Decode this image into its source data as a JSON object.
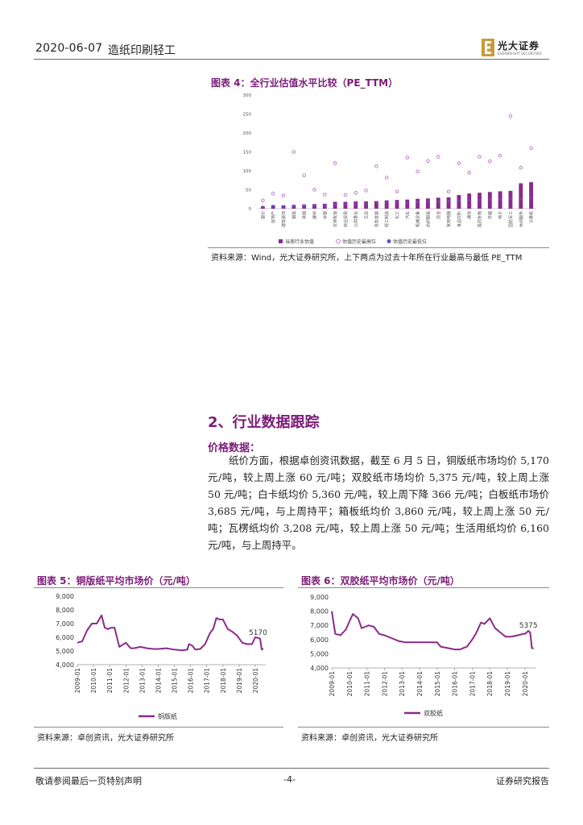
{
  "header": {
    "date": "2020-06-07",
    "sector": "造纸印刷轻工",
    "logo_cn": "光大证券",
    "logo_en": "EVERBRIGHT SECURITIES",
    "colors": {
      "logo": "#c89a3c",
      "accent": "#7b1c77"
    }
  },
  "figure4": {
    "title": "图表 4：全行业估值水平比较（PE_TTM）",
    "source": "资料来源：Wind，光大证券研究所，上下两点为过去十年所在行业最高与最低 PE_TTM"
  },
  "section": {
    "title": "2、行业数据跟踪",
    "subtitle": "价格数据：",
    "paragraph": "纸价方面，根据卓创资讯数据，截至 6 月 5 日，铜版纸市场均价 5,170 元/吨，较上周上涨 60 元/吨；双胶纸市场均价 5,375 元/吨，较上周上涨 50 元/吨；白卡纸均价 5,360 元/吨，较上周下降 366 元/吨；白板纸市场价 3,685 元/吨，与上周持平；箱板纸均价 3,860 元/吨，较上周上涨 50 元/吨；瓦楞纸均价 3,208 元/吨，较上周上涨 50 元/吨；生活用纸均价 6,160 元/吨，与上周持平。"
  },
  "figure5": {
    "title": "图表 5：铜版纸平均市场价（元/吨）",
    "source": "资料来源：卓创资讯，光大证券研究所"
  },
  "figure6": {
    "title": "图表 6：双胶纸平均市场价（元/吨）",
    "source": "资料来源：卓创资讯，光大证券研究所"
  },
  "footer": {
    "left": "敬请参阅最后一页特别声明",
    "page": "-4-",
    "right": "证券研究报告"
  },
  "chart_data": [
    {
      "type": "bar",
      "ylim": [
        0,
        300
      ],
      "yticks": [
        0,
        50,
        100,
        150,
        200,
        250,
        300
      ],
      "categories": [
        "银行",
        "房地产",
        "建筑装饰",
        "钢铁",
        "采掘",
        "建材",
        "非银",
        "农林牧渔",
        "商业贸易",
        "公用事业",
        "交运",
        "有色金属",
        "轻工制造",
        "化工",
        "汽车",
        "机械设备",
        "纺织服装",
        "综合",
        "家用电器",
        "食品饮料",
        "通信",
        "医药生物",
        "传媒",
        "电子",
        "国防军工",
        "休闲服务",
        "计算机"
      ],
      "series": [
        {
          "name": "当周行业估值",
          "type": "bar",
          "color": "#8b2a8a",
          "values": [
            6,
            9,
            9,
            10,
            11,
            12,
            13,
            18,
            18,
            19,
            19,
            20,
            22,
            23,
            24,
            26,
            27,
            29,
            30,
            36,
            40,
            42,
            44,
            46,
            47,
            67,
            70
          ]
        },
        {
          "name": "估值历史最高位",
          "type": "scatter",
          "color": "#b05fc0",
          "values": [
            22,
            40,
            35,
            150,
            88,
            50,
            37,
            120,
            36,
            42,
            48,
            112,
            82,
            45,
            135,
            98,
            126,
            137,
            45,
            120,
            95,
            137,
            125,
            140,
            244,
            108,
            160
          ]
        },
        {
          "name": "估值历史最低位",
          "type": "scatter",
          "color": "#6a4cc8",
          "values": [
            5,
            7,
            6,
            6,
            7,
            8,
            9,
            11,
            11,
            12,
            13,
            16,
            17,
            15,
            16,
            17,
            18,
            19,
            20,
            21,
            22,
            23,
            24,
            25,
            26,
            26,
            28
          ]
        }
      ]
    },
    {
      "type": "line",
      "ylim": [
        4000,
        9000
      ],
      "yticks": [
        "4,000",
        "5,000",
        "6,000",
        "7,000",
        "8,000",
        "9,000"
      ],
      "xticks": [
        "2009-01",
        "2010-01",
        "2011-01",
        "2012-01",
        "2013-01",
        "2014-01",
        "2015-01",
        "2016-01",
        "2017-01",
        "2018-01",
        "2019-01",
        "2020-01"
      ],
      "end_label": "5170",
      "series": [
        {
          "name": "铜版纸",
          "color": "#8b2a8a",
          "x": [
            2009.0,
            2009.3,
            2009.6,
            2009.9,
            2010.2,
            2010.5,
            2010.7,
            2010.9,
            2011.1,
            2011.3,
            2011.6,
            2012.0,
            2012.3,
            2012.5,
            2012.9,
            2013.3,
            2013.7,
            2014.0,
            2014.5,
            2015.0,
            2015.5,
            2015.8,
            2015.9,
            2016.1,
            2016.3,
            2016.6,
            2016.9,
            2017.2,
            2017.4,
            2017.6,
            2017.8,
            2018.0,
            2018.3,
            2018.6,
            2018.9,
            2019.2,
            2019.5,
            2019.8,
            2020.0,
            2020.2,
            2020.3,
            2020.4,
            2020.5
          ],
          "y": [
            5600,
            5700,
            6500,
            7000,
            7000,
            7600,
            6700,
            6600,
            6700,
            6700,
            5300,
            5600,
            5200,
            5200,
            5300,
            5200,
            5150,
            5150,
            5200,
            5100,
            5050,
            5100,
            5500,
            5400,
            5100,
            5150,
            5500,
            6300,
            6600,
            7400,
            7300,
            7300,
            6600,
            6400,
            6100,
            5600,
            5500,
            5500,
            6000,
            5950,
            5900,
            5100,
            5170
          ]
        }
      ]
    },
    {
      "type": "line",
      "ylim": [
        4000,
        9000
      ],
      "yticks": [
        "4,000",
        "5,000",
        "6,000",
        "7,000",
        "8,000",
        "9,000"
      ],
      "xticks": [
        "2009-01",
        "2010-01",
        "2011-01",
        "2012-01",
        "2013-01",
        "2014-01",
        "2015-01",
        "2016-01",
        "2017-01",
        "2018-01",
        "2019-01",
        "2020-01"
      ],
      "end_label": "5375",
      "series": [
        {
          "name": "双胶纸",
          "color": "#8b2a8a",
          "x": [
            2009.0,
            2009.2,
            2009.5,
            2009.8,
            2010.2,
            2010.5,
            2010.7,
            2010.9,
            2011.1,
            2011.4,
            2011.7,
            2012.0,
            2012.4,
            2012.8,
            2013.2,
            2013.6,
            2014.0,
            2014.5,
            2015.0,
            2015.2,
            2015.6,
            2016.0,
            2016.3,
            2016.7,
            2017.0,
            2017.2,
            2017.5,
            2017.7,
            2018.0,
            2018.3,
            2018.6,
            2018.9,
            2019.2,
            2019.6,
            2019.9,
            2020.0,
            2020.2,
            2020.3,
            2020.4,
            2020.5
          ],
          "y": [
            8000,
            6400,
            6300,
            6700,
            7800,
            7500,
            6800,
            6900,
            7000,
            6900,
            6400,
            6300,
            6100,
            5900,
            5800,
            5800,
            5800,
            5800,
            5800,
            5500,
            5400,
            5300,
            5300,
            5500,
            6000,
            6400,
            7200,
            7100,
            7500,
            6800,
            6500,
            6200,
            6200,
            6300,
            6400,
            6400,
            6600,
            6500,
            5400,
            5375
          ]
        }
      ]
    }
  ]
}
